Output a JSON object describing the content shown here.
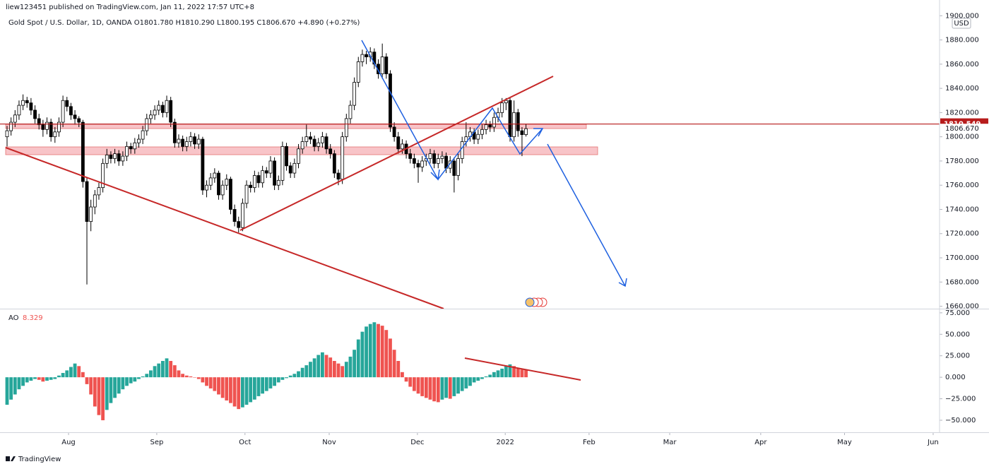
{
  "header": "liew123451 published on TradingView.com, Jan 11, 2022 17:57 UTC+8",
  "footer": "TradingView",
  "chart_data": [
    {
      "type": "candlestick",
      "title": "Gold Spot / U.S. Dollar, 1D, OANDA  O1801.780 H1810.290 L1800.195 C1806.670 +4.890 (+0.27%)",
      "currency": "USD",
      "up_color": "#ffffff",
      "down_color": "#000000",
      "border_color": "#000000",
      "price_line": 1810.549,
      "price_line_color": "#b71c1c",
      "last_price": {
        "value": 1806.67,
        "label": "1806.670"
      },
      "xlim": [
        -1.77,
        233.6
      ],
      "xticks": [
        {
          "value": 15.4,
          "label": "Aug"
        },
        {
          "value": 37.5,
          "label": "Sep"
        },
        {
          "value": 59.6,
          "label": "Oct"
        },
        {
          "value": 80.7,
          "label": "Nov"
        },
        {
          "value": 102.8,
          "label": "Dec"
        },
        {
          "value": 124.8,
          "label": "2022"
        },
        {
          "value": 145.8,
          "label": "Feb"
        },
        {
          "value": 166.0,
          "label": "Mar"
        },
        {
          "value": 188.8,
          "label": "Apr"
        },
        {
          "value": 209.8,
          "label": "May"
        },
        {
          "value": 232.0,
          "label": "Jun"
        }
      ],
      "ylim": [
        1658,
        1913
      ],
      "yticks": [
        {
          "value": 1660,
          "label": "1660.000"
        },
        {
          "value": 1680,
          "label": "1680.000"
        },
        {
          "value": 1700,
          "label": "1700.000"
        },
        {
          "value": 1720,
          "label": "1720.000"
        },
        {
          "value": 1740,
          "label": "1740.000"
        },
        {
          "value": 1760,
          "label": "1760.000"
        },
        {
          "value": 1780,
          "label": "1780.000"
        },
        {
          "value": 1800,
          "label": "1800.000"
        },
        {
          "value": 1820,
          "label": "1820.000"
        },
        {
          "value": 1840,
          "label": "1840.000"
        },
        {
          "value": 1860,
          "label": "1860.000"
        },
        {
          "value": 1880,
          "label": "1880.000"
        },
        {
          "value": 1900,
          "label": "1900.000"
        }
      ],
      "candles": [
        [
          1800,
          1809,
          1792,
          1805
        ],
        [
          1805,
          1816,
          1801,
          1812
        ],
        [
          1812,
          1822,
          1808,
          1818
        ],
        [
          1818,
          1830,
          1814,
          1826
        ],
        [
          1826,
          1835,
          1822,
          1830
        ],
        [
          1830,
          1833,
          1824,
          1828
        ],
        [
          1828,
          1832,
          1818,
          1822
        ],
        [
          1822,
          1826,
          1811,
          1815
        ],
        [
          1815,
          1819,
          1806,
          1810
        ],
        [
          1810,
          1814,
          1800,
          1806
        ],
        [
          1806,
          1816,
          1802,
          1812
        ],
        [
          1812,
          1815,
          1796,
          1800
        ],
        [
          1800,
          1808,
          1795,
          1804
        ],
        [
          1804,
          1816,
          1800,
          1812
        ],
        [
          1812,
          1834,
          1808,
          1830
        ],
        [
          1830,
          1833,
          1821,
          1825
        ],
        [
          1825,
          1828,
          1814,
          1818
        ],
        [
          1818,
          1822,
          1810,
          1815
        ],
        [
          1815,
          1817,
          1808,
          1812
        ],
        [
          1812,
          1814,
          1758,
          1763
        ],
        [
          1763,
          1766,
          1678,
          1730
        ],
        [
          1730,
          1748,
          1722,
          1742
        ],
        [
          1742,
          1756,
          1736,
          1752
        ],
        [
          1752,
          1762,
          1748,
          1758
        ],
        [
          1758,
          1782,
          1754,
          1778
        ],
        [
          1778,
          1790,
          1774,
          1785
        ],
        [
          1785,
          1788,
          1778,
          1782
        ],
        [
          1782,
          1790,
          1778,
          1786
        ],
        [
          1786,
          1789,
          1776,
          1780
        ],
        [
          1780,
          1788,
          1776,
          1784
        ],
        [
          1784,
          1796,
          1780,
          1792
        ],
        [
          1792,
          1795,
          1786,
          1790
        ],
        [
          1790,
          1799,
          1786,
          1795
        ],
        [
          1795,
          1802,
          1791,
          1798
        ],
        [
          1798,
          1809,
          1794,
          1805
        ],
        [
          1805,
          1819,
          1801,
          1815
        ],
        [
          1815,
          1822,
          1811,
          1818
        ],
        [
          1818,
          1826,
          1814,
          1822
        ],
        [
          1822,
          1830,
          1818,
          1826
        ],
        [
          1826,
          1829,
          1816,
          1820
        ],
        [
          1820,
          1834,
          1816,
          1830
        ],
        [
          1830,
          1833,
          1808,
          1812
        ],
        [
          1812,
          1815,
          1791,
          1795
        ],
        [
          1795,
          1802,
          1791,
          1798
        ],
        [
          1798,
          1801,
          1788,
          1792
        ],
        [
          1792,
          1800,
          1788,
          1796
        ],
        [
          1796,
          1804,
          1792,
          1800
        ],
        [
          1800,
          1803,
          1790,
          1794
        ],
        [
          1794,
          1802,
          1790,
          1798
        ],
        [
          1798,
          1800,
          1752,
          1756
        ],
        [
          1756,
          1764,
          1750,
          1760
        ],
        [
          1760,
          1770,
          1756,
          1766
        ],
        [
          1766,
          1774,
          1762,
          1770
        ],
        [
          1770,
          1772,
          1748,
          1752
        ],
        [
          1752,
          1764,
          1748,
          1760
        ],
        [
          1760,
          1769,
          1756,
          1765
        ],
        [
          1765,
          1767,
          1736,
          1740
        ],
        [
          1740,
          1744,
          1726,
          1730
        ],
        [
          1730,
          1734,
          1721,
          1725
        ],
        [
          1725,
          1749,
          1722,
          1745
        ],
        [
          1745,
          1764,
          1741,
          1760
        ],
        [
          1760,
          1763,
          1754,
          1758
        ],
        [
          1758,
          1772,
          1754,
          1768
        ],
        [
          1768,
          1771,
          1758,
          1762
        ],
        [
          1762,
          1776,
          1758,
          1772
        ],
        [
          1772,
          1775,
          1766,
          1770
        ],
        [
          1770,
          1784,
          1766,
          1780
        ],
        [
          1780,
          1783,
          1756,
          1760
        ],
        [
          1760,
          1768,
          1756,
          1764
        ],
        [
          1764,
          1796,
          1760,
          1792
        ],
        [
          1792,
          1795,
          1772,
          1776
        ],
        [
          1776,
          1779,
          1766,
          1770
        ],
        [
          1770,
          1782,
          1766,
          1778
        ],
        [
          1778,
          1794,
          1774,
          1790
        ],
        [
          1790,
          1800,
          1786,
          1796
        ],
        [
          1796,
          1810,
          1792,
          1800
        ],
        [
          1800,
          1804,
          1794,
          1798
        ],
        [
          1798,
          1801,
          1788,
          1792
        ],
        [
          1792,
          1799,
          1788,
          1795
        ],
        [
          1795,
          1804,
          1791,
          1800
        ],
        [
          1800,
          1803,
          1786,
          1790
        ],
        [
          1790,
          1794,
          1782,
          1786
        ],
        [
          1786,
          1789,
          1766,
          1770
        ],
        [
          1770,
          1773,
          1760,
          1765
        ],
        [
          1765,
          1804,
          1761,
          1800
        ],
        [
          1800,
          1819,
          1796,
          1815
        ],
        [
          1815,
          1830,
          1811,
          1826
        ],
        [
          1826,
          1849,
          1822,
          1845
        ],
        [
          1845,
          1866,
          1841,
          1862
        ],
        [
          1862,
          1872,
          1858,
          1868
        ],
        [
          1868,
          1871,
          1860,
          1866
        ],
        [
          1866,
          1874,
          1862,
          1870
        ],
        [
          1870,
          1873,
          1856,
          1860
        ],
        [
          1860,
          1864,
          1848,
          1852
        ],
        [
          1852,
          1877,
          1848,
          1866
        ],
        [
          1866,
          1869,
          1848,
          1852
        ],
        [
          1852,
          1855,
          1804,
          1808
        ],
        [
          1808,
          1812,
          1796,
          1800
        ],
        [
          1800,
          1804,
          1786,
          1790
        ],
        [
          1790,
          1798,
          1786,
          1794
        ],
        [
          1794,
          1797,
          1782,
          1786
        ],
        [
          1786,
          1790,
          1778,
          1782
        ],
        [
          1782,
          1786,
          1774,
          1778
        ],
        [
          1778,
          1781,
          1762,
          1775
        ],
        [
          1775,
          1784,
          1771,
          1780
        ],
        [
          1780,
          1786,
          1776,
          1782
        ],
        [
          1782,
          1790,
          1778,
          1786
        ],
        [
          1786,
          1789,
          1774,
          1778
        ],
        [
          1778,
          1786,
          1774,
          1782
        ],
        [
          1782,
          1788,
          1778,
          1784
        ],
        [
          1784,
          1787,
          1770,
          1774
        ],
        [
          1774,
          1784,
          1770,
          1780
        ],
        [
          1780,
          1783,
          1754,
          1768
        ],
        [
          1768,
          1786,
          1764,
          1782
        ],
        [
          1782,
          1800,
          1778,
          1796
        ],
        [
          1796,
          1812,
          1792,
          1800
        ],
        [
          1800,
          1808,
          1796,
          1804
        ],
        [
          1804,
          1807,
          1794,
          1798
        ],
        [
          1798,
          1806,
          1794,
          1802
        ],
        [
          1802,
          1810,
          1798,
          1806
        ],
        [
          1806,
          1814,
          1802,
          1810
        ],
        [
          1810,
          1813,
          1804,
          1808
        ],
        [
          1808,
          1820,
          1804,
          1816
        ],
        [
          1816,
          1824,
          1812,
          1820
        ],
        [
          1820,
          1832,
          1816,
          1828
        ],
        [
          1828,
          1832,
          1822,
          1830
        ],
        [
          1830,
          1833,
          1796,
          1800
        ],
        [
          1800,
          1830,
          1796,
          1820
        ],
        [
          1820,
          1823,
          1800,
          1805
        ],
        [
          1805,
          1808,
          1784,
          1801.78
        ],
        [
          1801.78,
          1810.29,
          1800.195,
          1806.67
        ]
      ]
    },
    {
      "type": "bar",
      "title": "AO",
      "up_color": "#26a69a",
      "down_color": "#ef5350",
      "ylim": [
        -64,
        79
      ],
      "yticks": [
        {
          "value": 75,
          "label": "75.000"
        },
        {
          "value": 50,
          "label": "50.000"
        },
        {
          "value": 25,
          "label": "25.000"
        },
        {
          "value": 0,
          "label": "0.000"
        },
        {
          "value": -25,
          "label": "−25.000"
        },
        {
          "value": -50,
          "label": "−50.000"
        }
      ],
      "values": [
        -32,
        -26,
        -20,
        -14,
        -10,
        -6,
        -4,
        -2,
        -3,
        -5,
        -4,
        -3,
        -2,
        2,
        5,
        8,
        12,
        16,
        13,
        6,
        -8,
        -20,
        -34,
        -44,
        -50,
        -38,
        -30,
        -24,
        -19,
        -14,
        -10,
        -7,
        -5,
        -2,
        1,
        4,
        8,
        13,
        16,
        19,
        22,
        19,
        14,
        8,
        4,
        2,
        1,
        0,
        -2,
        -6,
        -10,
        -13,
        -16,
        -20,
        -24,
        -27,
        -30,
        -34,
        -37,
        -35,
        -32,
        -29,
        -26,
        -22,
        -19,
        -16,
        -13,
        -10,
        -6,
        -3,
        -1,
        2,
        4,
        7,
        11,
        14,
        18,
        22,
        26,
        29,
        26,
        23,
        19,
        16,
        13,
        18,
        24,
        32,
        44,
        53,
        59,
        62,
        64,
        62,
        60,
        55,
        45,
        32,
        19,
        6,
        -5,
        -11,
        -16,
        -19,
        -22,
        -24,
        -26,
        -28,
        -29,
        -26,
        -24,
        -25,
        -22,
        -19,
        -16,
        -13,
        -10,
        -6,
        -4,
        -2,
        1,
        3,
        6,
        8,
        10,
        13,
        15,
        13,
        10,
        9,
        8.329
      ]
    }
  ]
}
